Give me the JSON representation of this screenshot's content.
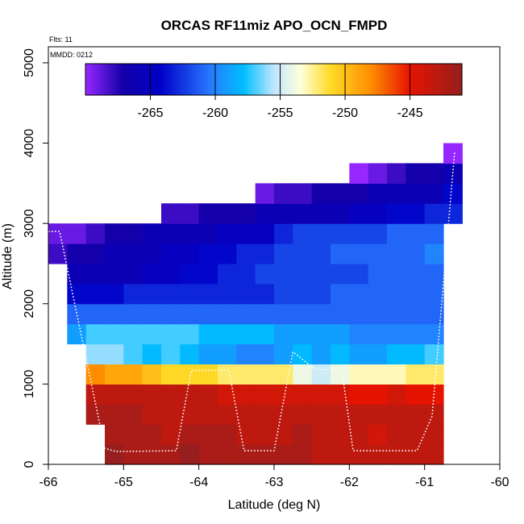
{
  "chart_data": {
    "type": "heatmap",
    "title": "ORCAS RF11miz APO_OCN_FMPD",
    "annotations": {
      "flights": "Flts: 11",
      "date": "MMDD: 0212"
    },
    "xlabel": "Latitude (deg N)",
    "ylabel": "Altitude (m)",
    "xlim": [
      -66,
      -60
    ],
    "ylim": [
      0,
      5200
    ],
    "x_ticks": [
      -66,
      -65,
      -64,
      -63,
      -62,
      -61,
      -60
    ],
    "y_ticks": [
      0,
      1000,
      2000,
      3000,
      4000,
      5000
    ],
    "grid": false,
    "colorbar": {
      "position": "top-left, inside plot",
      "range": [
        -270,
        -241
      ],
      "ticks": [
        -265,
        -260,
        -255,
        -250,
        -245
      ],
      "tick_labels": [
        "-265",
        "-260",
        "-255",
        "-250",
        "-245"
      ]
    },
    "grid_cells": {
      "x_start": -65.75,
      "x_step": 0.25,
      "altitude_bin_size": 250,
      "rows": [
        {
          "alt": 0,
          "x0": -65.25,
          "values": [
            -241,
            -242,
            -242,
            -242,
            -241,
            -242,
            -242,
            -242,
            -242,
            -242,
            -242,
            -243,
            -243,
            -243,
            -243,
            -243,
            -243,
            -243
          ]
        },
        {
          "alt": 250,
          "x0": -65.25,
          "values": [
            -242,
            -242,
            -242,
            -243,
            -242,
            -242,
            -242,
            -243,
            -243,
            -243,
            -242,
            -243,
            -243,
            -243,
            -244,
            -243,
            -243,
            -243
          ]
        },
        {
          "alt": 500,
          "x0": -65.5,
          "values": [
            -242,
            -242,
            -242,
            -243,
            -243,
            -243,
            -243,
            -243,
            -243,
            -243,
            -243,
            -243,
            -243,
            -243,
            -243,
            -243,
            -243,
            -243,
            -243
          ]
        },
        {
          "alt": 750,
          "x0": -65.5,
          "values": [
            -243,
            -243,
            -243,
            -243,
            -243,
            -243,
            -243,
            -244,
            -244,
            -244,
            -244,
            -244,
            -244,
            -244,
            -245,
            -245,
            -244,
            -245,
            -245
          ]
        },
        {
          "alt": 1000,
          "x0": -65.5,
          "values": [
            -248,
            -249,
            -249,
            -250,
            -251,
            -251,
            -251,
            -252,
            -252,
            -252,
            -252,
            -254,
            -255,
            -254,
            -253,
            -253,
            -253,
            -252,
            -252
          ]
        },
        {
          "alt": 1250,
          "x0": -65.5,
          "values": [
            -256,
            -256,
            -257,
            -258,
            -257,
            -258,
            -259,
            -259,
            -260,
            -260,
            -259,
            -258,
            -259,
            -258,
            -259,
            -259,
            -258,
            -258,
            -257
          ]
        },
        {
          "alt": 1500,
          "x0": -65.75,
          "values": [
            -259,
            -257,
            -257,
            -257,
            -257,
            -257,
            -257,
            -258,
            -258,
            -258,
            -258,
            -259,
            -259,
            -259,
            -259,
            -260,
            -260,
            -260,
            -260,
            -260
          ]
        },
        {
          "alt": 1750,
          "x0": -65.75,
          "values": [
            -261,
            -261,
            -261,
            -261,
            -261,
            -261,
            -261,
            -261,
            -261,
            -261,
            -261,
            -261,
            -261,
            -261,
            -261,
            -261,
            -261,
            -261,
            -261,
            -261
          ]
        },
        {
          "alt": 2000,
          "x0": -65.75,
          "values": [
            -264,
            -264,
            -264,
            -263,
            -263,
            -263,
            -263,
            -263,
            -263,
            -263,
            -263,
            -262,
            -262,
            -262,
            -261,
            -261,
            -261,
            -261,
            -261,
            -261
          ]
        },
        {
          "alt": 2250,
          "x0": -65.75,
          "values": [
            -266,
            -266,
            -266,
            -266,
            -265,
            -265,
            -264,
            -264,
            -263,
            -263,
            -262,
            -262,
            -262,
            -262,
            -262,
            -262,
            -261,
            -261,
            -261,
            -261
          ]
        },
        {
          "alt": 2500,
          "x0": -66.0,
          "values": [
            -268,
            -267,
            -267,
            -266,
            -266,
            -266,
            -265,
            -265,
            -264,
            -264,
            -263,
            -263,
            -262,
            -262,
            -262,
            -261,
            -261,
            -261,
            -261,
            -261,
            -260
          ]
        },
        {
          "alt": 2750,
          "x0": -66.0,
          "values": [
            -269,
            -269,
            -268,
            -267,
            -267,
            -266,
            -266,
            -266,
            -266,
            -265,
            -265,
            -265,
            -263,
            -262,
            -262,
            -262,
            -262,
            -262,
            -261,
            -261,
            -261
          ]
        },
        {
          "alt": 3000,
          "x0": -64.5,
          "values": [
            -268,
            -268,
            -267,
            -267,
            -267,
            -266,
            -266,
            -266,
            -266,
            -266,
            -265,
            -265,
            -264,
            -264,
            -263,
            -263
          ]
        },
        {
          "alt": 3250,
          "x0": -63.25,
          "values": [
            -269,
            -268,
            -268,
            -267,
            -267,
            -267,
            -266,
            -266,
            -266,
            -266,
            -264
          ]
        },
        {
          "alt": 3500,
          "x0": -62.0,
          "values": [
            -270,
            -269,
            -268,
            -267,
            -267,
            -266
          ]
        },
        {
          "alt": 3750,
          "x0": -60.75,
          "values": [
            -270
          ]
        }
      ]
    }
  }
}
